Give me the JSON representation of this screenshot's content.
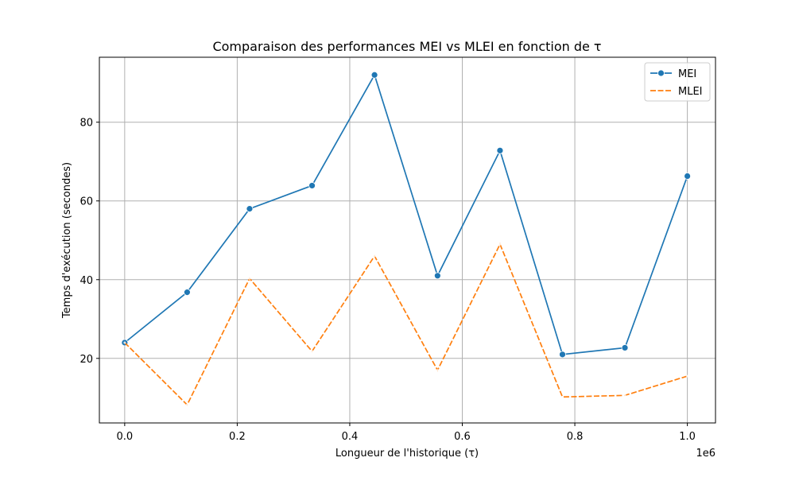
{
  "chart_data": {
    "type": "line",
    "title": "Comparaison des performances MEI vs MLEI en fonction de τ",
    "xlabel": "Longueur de l'historique (τ)",
    "ylabel": "Temps d'exécution (secondes)",
    "x_offset_label": "1e6",
    "xlim": [
      -0.045,
      1.05
    ],
    "ylim": [
      3.6,
      96.5
    ],
    "x_ticks": [
      0.0,
      0.2,
      0.4,
      0.6,
      0.8,
      1.0
    ],
    "x_tick_labels": [
      "0.0",
      "0.2",
      "0.4",
      "0.6",
      "0.8",
      "1.0"
    ],
    "y_ticks": [
      20,
      40,
      60,
      80
    ],
    "y_tick_labels": [
      "20",
      "40",
      "60",
      "80"
    ],
    "grid": true,
    "legend_position": "top-right",
    "x": [
      0.0,
      0.111,
      0.222,
      0.333,
      0.444,
      0.556,
      0.667,
      0.778,
      0.889,
      1.0
    ],
    "series": [
      {
        "name": "MEI",
        "color": "#1f77b4",
        "marker": "circle",
        "dash": "solid",
        "values": [
          24.0,
          36.8,
          58.0,
          63.9,
          92.0,
          41.0,
          72.8,
          21.0,
          22.7,
          66.3
        ]
      },
      {
        "name": "MLEI",
        "color": "#ff7f0e",
        "marker": "none",
        "dash": "dashed",
        "values": [
          24.0,
          8.2,
          40.3,
          21.8,
          46.0,
          17.0,
          49.0,
          10.2,
          10.6,
          15.5
        ]
      }
    ]
  }
}
